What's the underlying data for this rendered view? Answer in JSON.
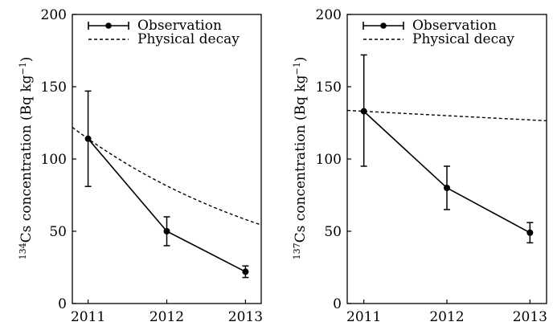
{
  "chart_data": [
    {
      "type": "line",
      "ylabel": {
        "isotope": "134",
        "rest": "Cs concentration (Bq kg",
        "exponent": "−1",
        "close": ")"
      },
      "x_ticks": [
        "2011",
        "2012",
        "2013"
      ],
      "y_ticks": [
        "0",
        "50",
        "100",
        "150",
        "200"
      ],
      "ylim": [
        0,
        200
      ],
      "xlim": [
        2010.8,
        2013.2
      ],
      "legend_position": "top-right",
      "series": [
        {
          "name": "Observation",
          "style": "solid-with-markers-and-errorbars",
          "x": [
            2011,
            2012,
            2013
          ],
          "y": [
            114,
            50,
            22
          ],
          "err_low": [
            81,
            40,
            18
          ],
          "err_high": [
            147,
            60,
            26
          ]
        },
        {
          "name": "Physical decay",
          "style": "dashed",
          "curve": {
            "y0": 114,
            "x0": 2011,
            "half_life_years": 2.06
          }
        }
      ]
    },
    {
      "type": "line",
      "ylabel": {
        "isotope": "137",
        "rest": "Cs concentration (Bq kg",
        "exponent": "−1",
        "close": ")"
      },
      "x_ticks": [
        "2011",
        "2012",
        "2013"
      ],
      "y_ticks": [
        "0",
        "50",
        "100",
        "150",
        "200"
      ],
      "ylim": [
        0,
        200
      ],
      "xlim": [
        2010.8,
        2013.2
      ],
      "legend_position": "top-right",
      "series": [
        {
          "name": "Observation",
          "style": "solid-with-markers-and-errorbars",
          "x": [
            2011,
            2012,
            2013
          ],
          "y": [
            133,
            80,
            49
          ],
          "err_low": [
            95,
            65,
            42
          ],
          "err_high": [
            172,
            95,
            56
          ]
        },
        {
          "name": "Physical decay",
          "style": "dashed",
          "curve": {
            "y0": 133,
            "x0": 2011,
            "half_life_years": 30.17
          }
        }
      ]
    }
  ]
}
